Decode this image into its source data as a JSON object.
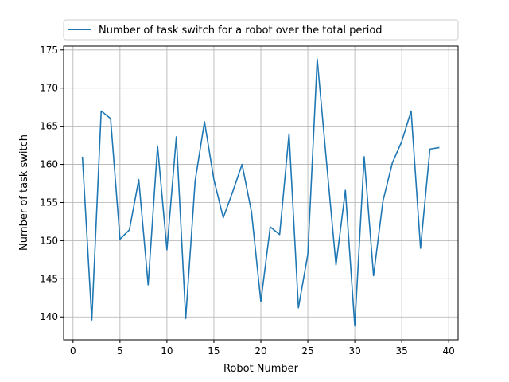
{
  "chart_data": {
    "type": "line",
    "title": "",
    "xlabel": "Robot Number",
    "ylabel": "Number of task switch",
    "xlim": [
      -1,
      41
    ],
    "ylim": [
      137,
      175.5
    ],
    "xticks": [
      0,
      5,
      10,
      15,
      20,
      25,
      30,
      35,
      40
    ],
    "yticks": [
      140,
      145,
      150,
      155,
      160,
      165,
      170,
      175
    ],
    "grid": true,
    "legend_position": "top",
    "series": [
      {
        "name": "Number of task switch for a robot over the total period",
        "color": "#1f77b4",
        "x": [
          1,
          2,
          3,
          4,
          5,
          6,
          7,
          8,
          9,
          10,
          11,
          12,
          13,
          14,
          15,
          16,
          17,
          18,
          19,
          20,
          21,
          22,
          23,
          24,
          25,
          26,
          27,
          28,
          29,
          30,
          31,
          32,
          33,
          34,
          35,
          36,
          37,
          38,
          39
        ],
        "values": [
          161,
          139.6,
          167,
          166,
          150.2,
          151.4,
          158,
          144.2,
          162.4,
          148.8,
          163.6,
          139.8,
          157.8,
          165.6,
          158,
          153,
          156.4,
          160,
          153.8,
          142,
          151.8,
          150.8,
          164,
          141.2,
          148.2,
          173.8,
          160.2,
          146.8,
          156.6,
          138.8,
          161,
          145.4,
          155.2,
          160.2,
          163,
          167,
          149,
          162,
          162.2
        ]
      }
    ]
  }
}
